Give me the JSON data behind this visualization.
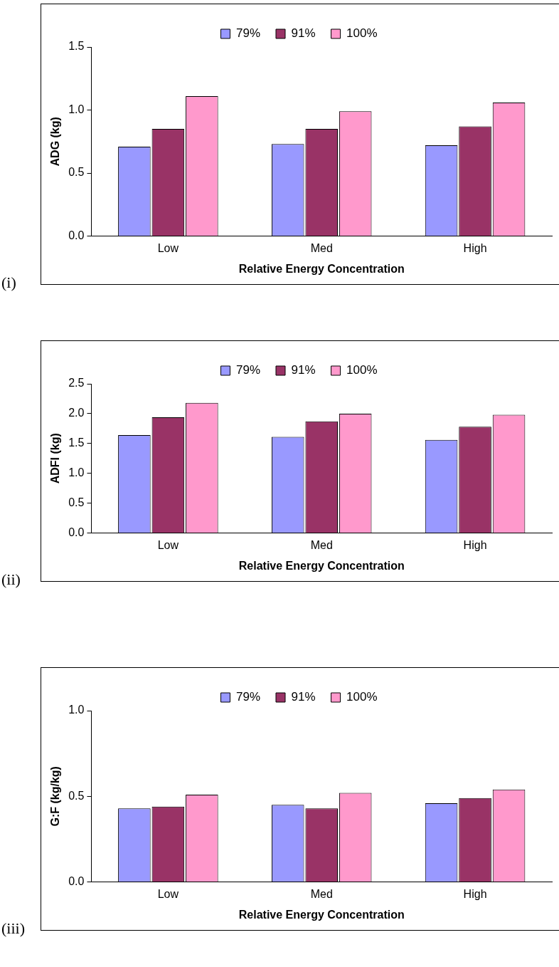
{
  "chart_data": [
    {
      "type": "bar",
      "xlabel": "Relative Energy Concentration",
      "ylabel": "ADG (kg)",
      "categories": [
        "Low",
        "Med",
        "High"
      ],
      "series": [
        {
          "name": "79%",
          "color": "#9999ff",
          "values": [
            0.71,
            0.73,
            0.72
          ]
        },
        {
          "name": "91%",
          "color": "#993366",
          "values": [
            0.85,
            0.85,
            0.87
          ]
        },
        {
          "name": "100%",
          "color": "#ff99cc",
          "values": [
            1.11,
            0.99,
            1.06
          ]
        }
      ],
      "ylim": [
        0,
        1.5
      ],
      "yticks": [
        {
          "value": 0,
          "label": "0.0"
        },
        {
          "value": 0.5,
          "label": "0.5"
        },
        {
          "value": 1,
          "label": "1.0"
        },
        {
          "value": 1.5,
          "label": "1.5"
        }
      ],
      "grid": false,
      "legend": "top",
      "annotations": [
        "(i)"
      ]
    },
    {
      "type": "bar",
      "xlabel": "Relative Energy Concentration",
      "ylabel": "ADFI (kg)",
      "categories": [
        "Low",
        "Med",
        "High"
      ],
      "series": [
        {
          "name": "79%",
          "color": "#9999ff",
          "values": [
            1.64,
            1.61,
            1.56
          ]
        },
        {
          "name": "91%",
          "color": "#993366",
          "values": [
            1.94,
            1.87,
            1.78
          ]
        },
        {
          "name": "100%",
          "color": "#ff99cc",
          "values": [
            2.18,
            2.0,
            1.98
          ]
        }
      ],
      "ylim": [
        0,
        2.5
      ],
      "yticks": [
        {
          "value": 0,
          "label": "0.0"
        },
        {
          "value": 0.5,
          "label": "0.5"
        },
        {
          "value": 1,
          "label": "1.0"
        },
        {
          "value": 1.5,
          "label": "1.5"
        },
        {
          "value": 2,
          "label": "2.0"
        },
        {
          "value": 2.5,
          "label": "2.5"
        }
      ],
      "grid": false,
      "legend": "top",
      "annotations": [
        "(ii)"
      ]
    },
    {
      "type": "bar",
      "xlabel": "Relative Energy Concentration",
      "ylabel": "G:F (kg/kg)",
      "categories": [
        "Low",
        "Med",
        "High"
      ],
      "series": [
        {
          "name": "79%",
          "color": "#9999ff",
          "values": [
            0.43,
            0.45,
            0.46
          ]
        },
        {
          "name": "91%",
          "color": "#993366",
          "values": [
            0.44,
            0.43,
            0.49
          ]
        },
        {
          "name": "100%",
          "color": "#ff99cc",
          "values": [
            0.51,
            0.52,
            0.54
          ]
        }
      ],
      "ylim": [
        0,
        1
      ],
      "yticks": [
        {
          "value": 0,
          "label": "0.0"
        },
        {
          "value": 0.5,
          "label": "0.5"
        },
        {
          "value": 1,
          "label": "1.0"
        }
      ],
      "grid": false,
      "legend": "top",
      "annotations": [
        "(iii)"
      ]
    }
  ]
}
